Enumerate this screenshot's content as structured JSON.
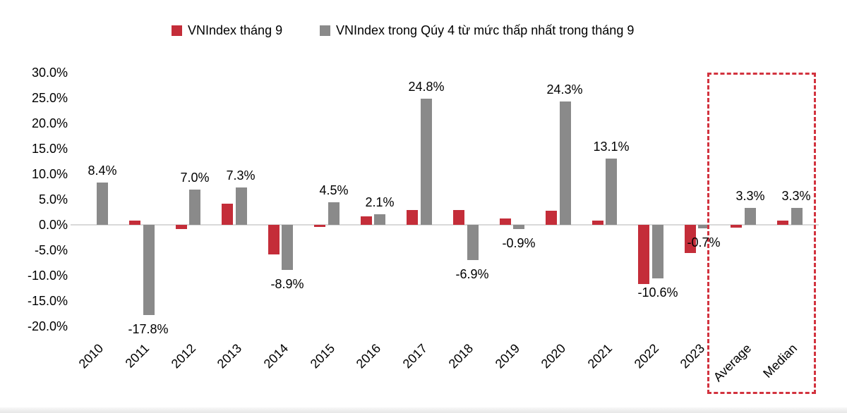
{
  "page": {
    "background": "#FFFFFF"
  },
  "legend": {
    "position": "top",
    "items": [
      {
        "label": "VNIndex tháng 9",
        "color": "#C42D39"
      },
      {
        "label": "VNIndex trong Qúy 4 từ mức thấp nhất trong tháng 9",
        "color": "#8A8A8A"
      }
    ]
  },
  "chart_data": {
    "type": "bar",
    "title": "",
    "xlabel": "",
    "ylabel": "",
    "categories": [
      "2010",
      "2011",
      "2012",
      "2013",
      "2014",
      "2015",
      "2016",
      "2017",
      "2018",
      "2019",
      "2020",
      "2021",
      "2022",
      "2023",
      "Average",
      "Median"
    ],
    "series": [
      {
        "name": "VNIndex tháng 9",
        "color": "#C42D39",
        "values": [
          0.0,
          0.8,
          -0.8,
          4.2,
          -5.9,
          -0.4,
          1.7,
          2.9,
          2.9,
          1.3,
          2.8,
          0.8,
          -11.6,
          -5.6,
          -0.5,
          0.8
        ],
        "labels": [
          null,
          null,
          null,
          null,
          null,
          null,
          null,
          null,
          null,
          null,
          null,
          null,
          null,
          null,
          null,
          null
        ]
      },
      {
        "name": "VNIndex trong Qúy 4 từ mức thấp nhất trong tháng 9",
        "color": "#8A8A8A",
        "values": [
          8.4,
          -17.8,
          7.0,
          7.3,
          -8.9,
          4.5,
          2.1,
          24.8,
          -6.9,
          -0.9,
          24.3,
          13.1,
          -10.6,
          -0.7,
          3.3,
          3.3
        ],
        "labels": [
          "8.4%",
          "-17.8%",
          "7.0%",
          "7.3%",
          "-8.9%",
          "4.5%",
          "2.1%",
          "24.8%",
          "-6.9%",
          "-0.9%",
          "24.3%",
          "13.1%",
          "-10.6%",
          "-0.7%",
          "3.3%",
          "3.3%"
        ]
      }
    ],
    "yticks": [
      "30.0%",
      "25.0%",
      "20.0%",
      "15.0%",
      "10.0%",
      "5.0%",
      "0.0%",
      "-5.0%",
      "-10.0%",
      "-15.0%",
      "-20.0%"
    ],
    "ylim": [
      -20,
      30
    ],
    "grid": false,
    "legend_position": "top",
    "axis_line_color": "#D9D9D9",
    "annotation": {
      "type": "dashed-box",
      "around": [
        "Average",
        "Median"
      ],
      "color": "#D2333F"
    }
  }
}
